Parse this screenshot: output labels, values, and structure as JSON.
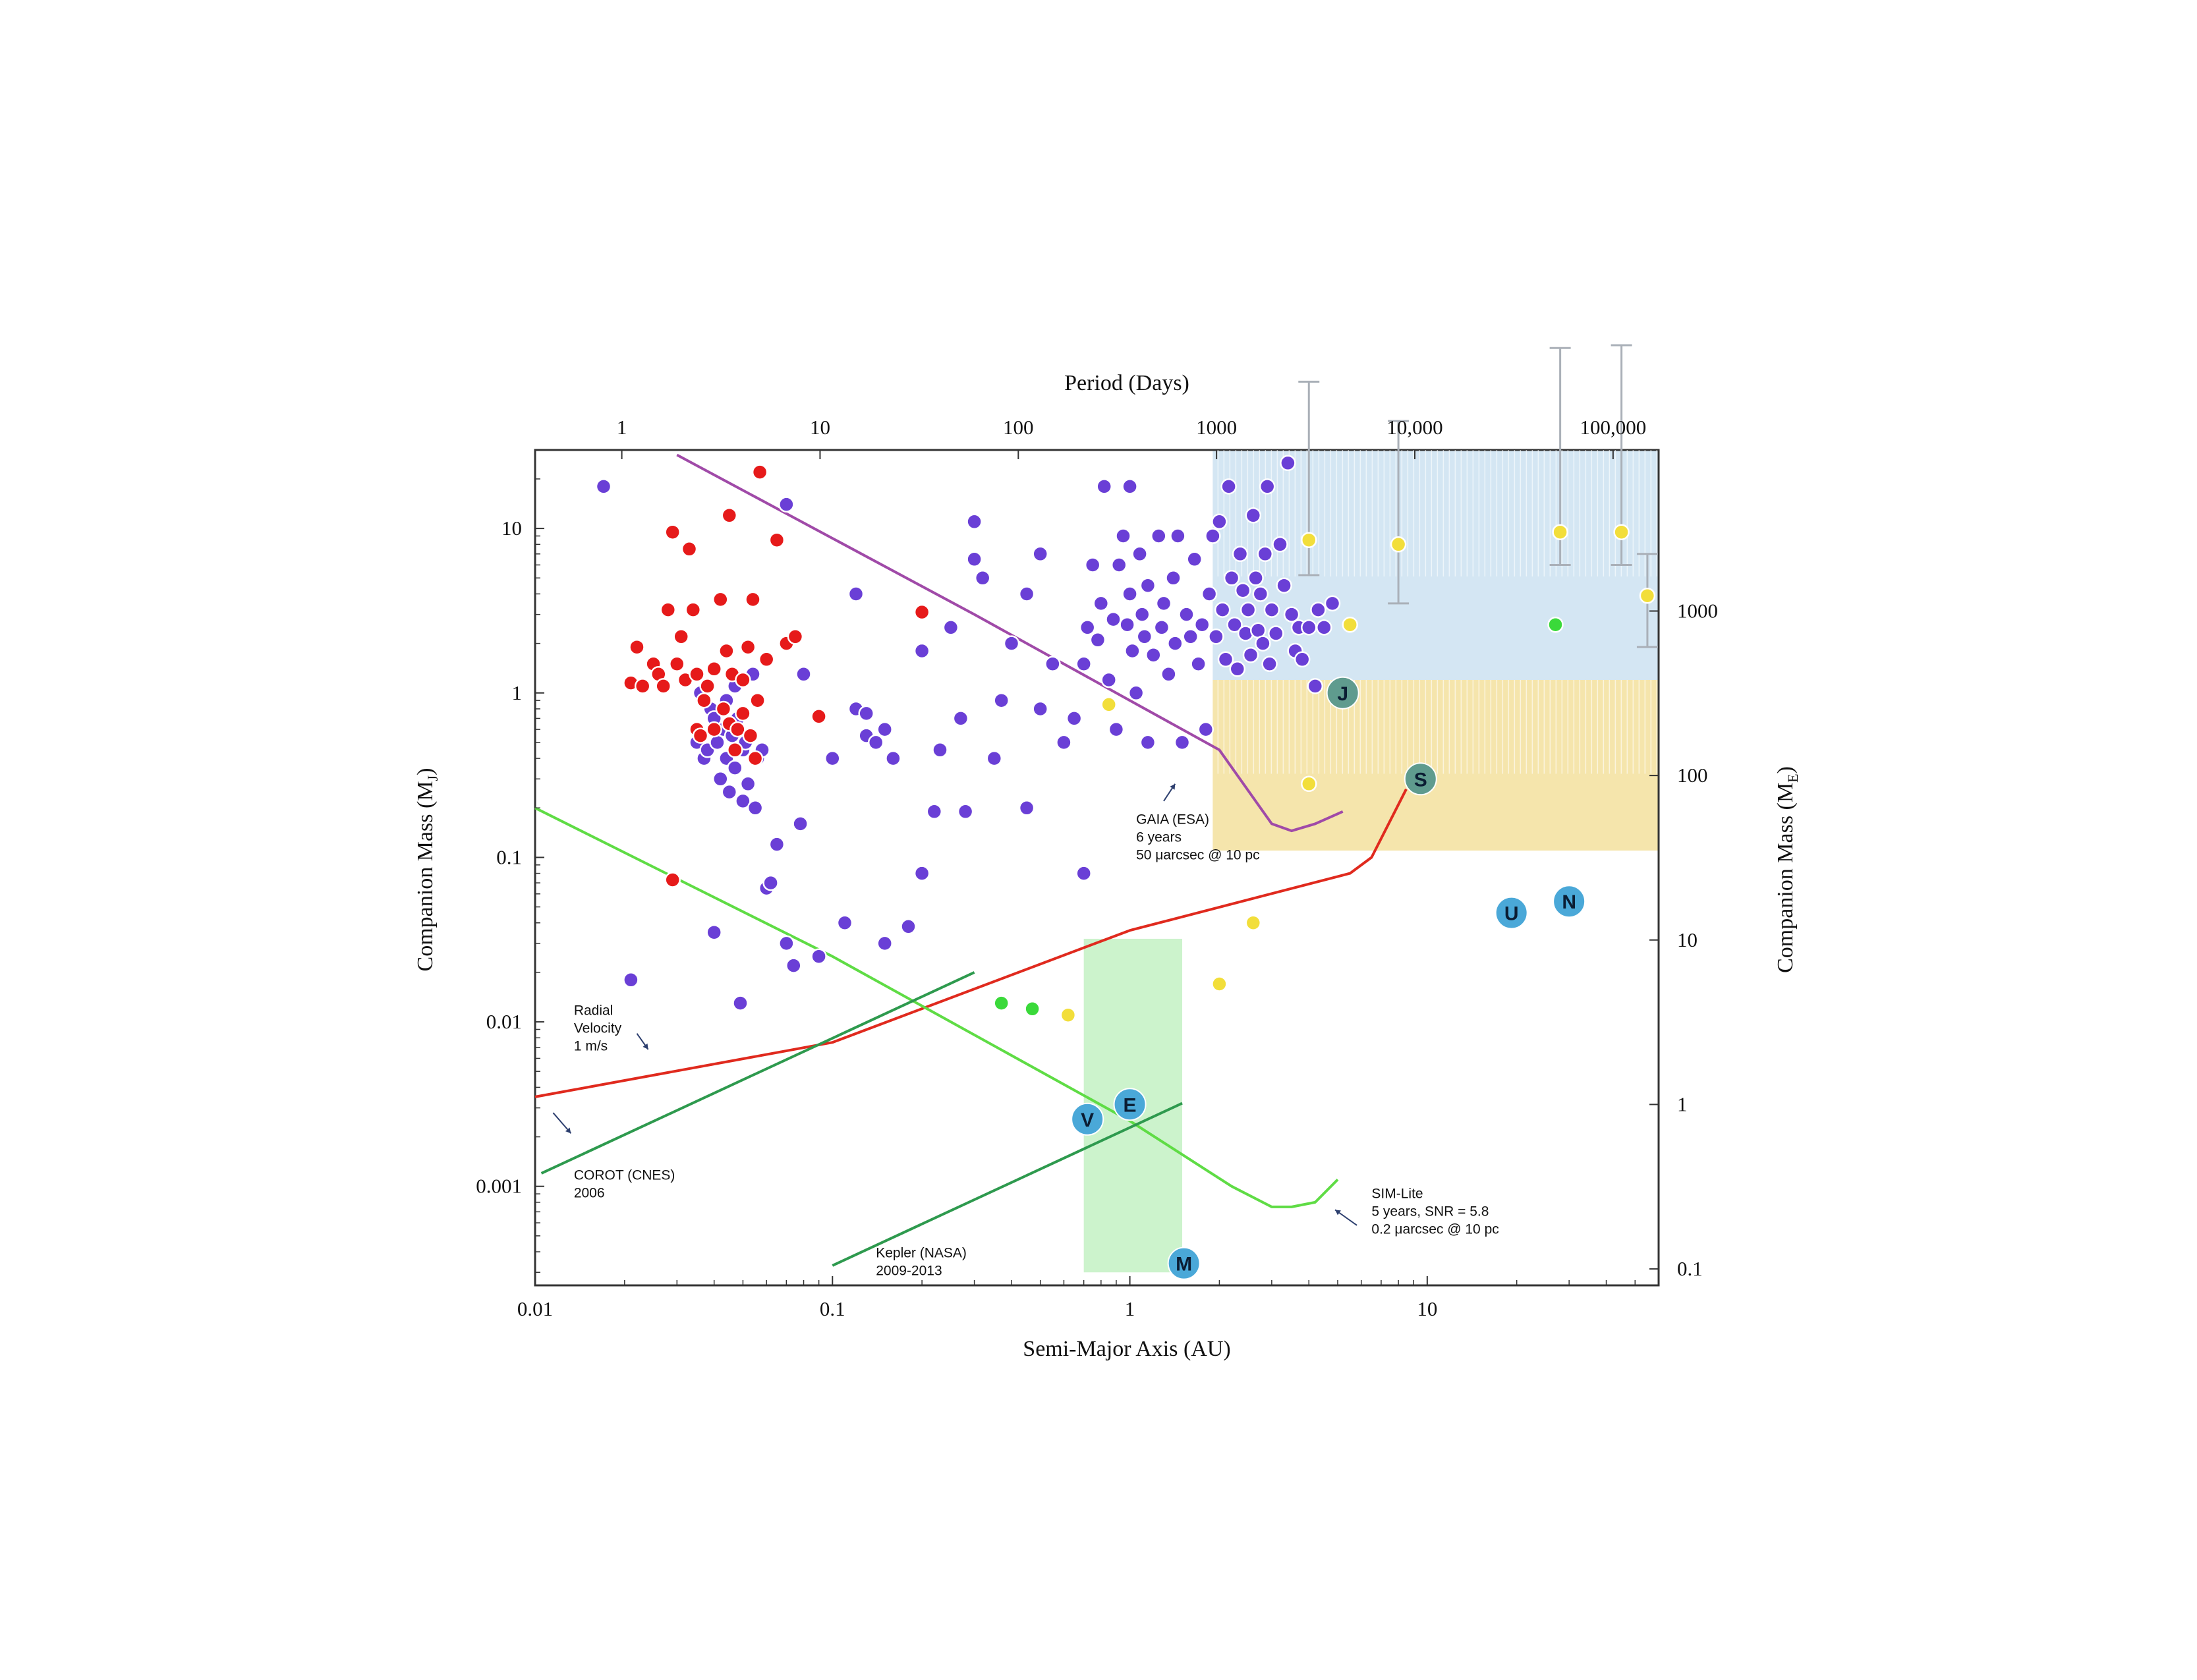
{
  "chart_data": {
    "type": "scatter",
    "x_scale": "log",
    "y_scale": "log",
    "xlim": [
      0.01,
      60
    ],
    "ylim": [
      0.00025,
      30
    ],
    "xlabel": "Semi-Major Axis (AU)",
    "ylabel": "Companion Mass (MJ)",
    "ylabel_main": "Companion Mass (M",
    "ylabel_sub": "J",
    "ylabel_close": ")",
    "top_axis_label": "Period (Days)",
    "right_axis_label_main": "Companion Mass (M",
    "right_axis_label_sub": "E",
    "right_axis_label_close": ")",
    "x_ticks": [
      {
        "v": 0.01,
        "label": "0.01"
      },
      {
        "v": 0.1,
        "label": "0.1"
      },
      {
        "v": 1,
        "label": "1"
      },
      {
        "v": 10,
        "label": "10"
      }
    ],
    "y_ticks": [
      {
        "v": 10,
        "label": "10"
      },
      {
        "v": 1,
        "label": "1"
      },
      {
        "v": 0.1,
        "label": "0.1"
      },
      {
        "v": 0.01,
        "label": "0.01"
      },
      {
        "v": 0.001,
        "label": "0.001"
      }
    ],
    "top_ticks": [
      {
        "v": 1,
        "label": "1"
      },
      {
        "v": 10,
        "label": "10"
      },
      {
        "v": 100,
        "label": "100"
      },
      {
        "v": 1000,
        "label": "1000"
      },
      {
        "v": 10000,
        "label": "10,000"
      },
      {
        "v": 100000,
        "label": "100,000"
      }
    ],
    "right_ticks": [
      {
        "v": 1000,
        "label": "1000"
      },
      {
        "v": 100,
        "label": "100"
      },
      {
        "v": 10,
        "label": "10"
      },
      {
        "v": 1,
        "label": "1"
      },
      {
        "v": 0.1,
        "label": "0.1"
      }
    ],
    "regions": [
      {
        "name": "gaia-region",
        "x": [
          1.9,
          60
        ],
        "y": [
          1.2,
          30
        ],
        "color": "#cfe3f2"
      },
      {
        "name": "sim-region",
        "x": [
          1.9,
          60
        ],
        "y": [
          0.11,
          1.2
        ],
        "color": "#f4e2a3"
      },
      {
        "name": "habitable-zone",
        "x": [
          0.7,
          1.5
        ],
        "y": [
          0.0003,
          0.032
        ],
        "color": "#c6f2c6"
      }
    ],
    "curves": [
      {
        "name": "gaia-curve",
        "color": "#a04aa8",
        "points": [
          [
            0.03,
            28
          ],
          [
            0.3,
            3.0
          ],
          [
            1.0,
            0.9
          ],
          [
            2.0,
            0.45
          ],
          [
            3.0,
            0.16
          ],
          [
            3.5,
            0.145
          ],
          [
            4.2,
            0.16
          ],
          [
            5.2,
            0.19
          ]
        ]
      },
      {
        "name": "radial-velocity-curve",
        "color": "#e02a1e",
        "points": [
          [
            0.01,
            0.0035
          ],
          [
            0.1,
            0.0075
          ],
          [
            1.0,
            0.036
          ],
          [
            5.5,
            0.08
          ],
          [
            6.5,
            0.1
          ],
          [
            8.5,
            0.26
          ]
        ]
      },
      {
        "name": "sim-lite-curve",
        "color": "#5fdc45",
        "points": [
          [
            0.01,
            0.2
          ],
          [
            0.1,
            0.025
          ],
          [
            1.0,
            0.0025
          ],
          [
            2.2,
            0.001
          ],
          [
            3.0,
            0.00075
          ],
          [
            3.5,
            0.00075
          ],
          [
            4.2,
            0.0008
          ],
          [
            5.0,
            0.0011
          ]
        ]
      },
      {
        "name": "corot-curve",
        "color": "#2e9a4e",
        "points": [
          [
            0.0105,
            0.0012
          ],
          [
            0.3,
            0.02
          ]
        ]
      },
      {
        "name": "kepler-curve",
        "color": "#2e9a4e",
        "points": [
          [
            0.1,
            0.00033
          ],
          [
            1.5,
            0.0032
          ]
        ]
      }
    ],
    "annotations": [
      {
        "lines": [
          "GAIA (ESA)",
          "6 years",
          "50 μarcsec @ 10 pc"
        ],
        "x": 1.05,
        "y": 0.16
      },
      {
        "lines": [
          "Radial",
          "Velocity",
          "1 m/s"
        ],
        "x": 0.0135,
        "y": 0.011
      },
      {
        "lines": [
          "COROT (CNES)",
          "2006"
        ],
        "x": 0.0135,
        "y": 0.0011
      },
      {
        "lines": [
          "Kepler (NASA)",
          "2009-2013"
        ],
        "x": 0.14,
        "y": 0.00037
      },
      {
        "lines": [
          "SIM-Lite",
          "5 years, SNR = 5.8",
          "0.2 μarcsec @ 10 pc"
        ],
        "x": 6.5,
        "y": 0.00085
      }
    ],
    "arrows": [
      {
        "from": [
          1.3,
          0.22
        ],
        "to": [
          1.42,
          0.28
        ]
      },
      {
        "from": [
          0.022,
          0.0085
        ],
        "to": [
          0.024,
          0.0068
        ]
      },
      {
        "from": [
          0.0115,
          0.0028
        ],
        "to": [
          0.0132,
          0.0021
        ]
      },
      {
        "from": [
          5.8,
          0.00058
        ],
        "to": [
          4.9,
          0.00072
        ]
      }
    ],
    "series": [
      {
        "name": "",
        "color": "#6a3fd6",
        "points": [
          [
            0.017,
            18
          ],
          [
            0.021,
            0.018
          ],
          [
            0.035,
            0.5
          ],
          [
            0.036,
            1.0
          ],
          [
            0.037,
            0.4
          ],
          [
            0.038,
            0.45
          ],
          [
            0.039,
            0.8
          ],
          [
            0.04,
            0.7
          ],
          [
            0.04,
            0.035
          ],
          [
            0.041,
            0.5
          ],
          [
            0.042,
            0.3
          ],
          [
            0.043,
            0.6
          ],
          [
            0.044,
            0.9
          ],
          [
            0.044,
            0.4
          ],
          [
            0.045,
            0.25
          ],
          [
            0.046,
            0.55
          ],
          [
            0.047,
            1.1
          ],
          [
            0.047,
            0.35
          ],
          [
            0.048,
            0.7
          ],
          [
            0.049,
            0.013
          ],
          [
            0.05,
            0.45
          ],
          [
            0.05,
            0.22
          ],
          [
            0.051,
            0.5
          ],
          [
            0.052,
            0.28
          ],
          [
            0.054,
            1.3
          ],
          [
            0.055,
            0.2
          ],
          [
            0.056,
            0.4
          ],
          [
            0.058,
            0.45
          ],
          [
            0.06,
            0.065
          ],
          [
            0.062,
            0.07
          ],
          [
            0.065,
            0.12
          ],
          [
            0.07,
            14
          ],
          [
            0.07,
            0.03
          ],
          [
            0.074,
            0.022
          ],
          [
            0.078,
            0.16
          ],
          [
            0.08,
            1.3
          ],
          [
            0.09,
            0.025
          ],
          [
            0.1,
            0.4
          ],
          [
            0.11,
            0.04
          ],
          [
            0.12,
            4
          ],
          [
            0.12,
            0.8
          ],
          [
            0.13,
            0.75
          ],
          [
            0.13,
            0.55
          ],
          [
            0.14,
            0.5
          ],
          [
            0.15,
            0.6
          ],
          [
            0.15,
            0.03
          ],
          [
            0.16,
            0.4
          ],
          [
            0.18,
            0.038
          ],
          [
            0.2,
            1.8
          ],
          [
            0.2,
            0.08
          ],
          [
            0.22,
            0.19
          ],
          [
            0.23,
            0.45
          ],
          [
            0.25,
            2.5
          ],
          [
            0.27,
            0.7
          ],
          [
            0.28,
            0.19
          ],
          [
            0.3,
            11
          ],
          [
            0.3,
            6.5
          ],
          [
            0.32,
            5
          ],
          [
            0.35,
            0.4
          ],
          [
            0.37,
            0.9
          ],
          [
            0.4,
            2.0
          ],
          [
            0.45,
            4
          ],
          [
            0.45,
            0.2
          ],
          [
            0.5,
            7
          ],
          [
            0.5,
            0.8
          ],
          [
            0.55,
            1.5
          ],
          [
            0.6,
            0.5
          ],
          [
            0.65,
            0.7
          ],
          [
            0.7,
            1.5
          ],
          [
            0.7,
            0.08
          ],
          [
            0.72,
            2.5
          ],
          [
            0.75,
            6
          ],
          [
            0.78,
            2.1
          ],
          [
            0.8,
            3.5
          ],
          [
            0.82,
            18
          ],
          [
            0.85,
            1.2
          ],
          [
            0.88,
            2.8
          ],
          [
            0.9,
            0.6
          ],
          [
            0.92,
            6
          ],
          [
            0.95,
            9
          ],
          [
            0.98,
            2.6
          ],
          [
            1.0,
            18
          ],
          [
            1.0,
            4.0
          ],
          [
            1.02,
            1.8
          ],
          [
            1.05,
            1.0
          ],
          [
            1.08,
            7
          ],
          [
            1.1,
            3
          ],
          [
            1.12,
            2.2
          ],
          [
            1.15,
            0.5
          ],
          [
            1.15,
            4.5
          ],
          [
            1.2,
            1.7
          ],
          [
            1.25,
            9
          ],
          [
            1.28,
            2.5
          ],
          [
            1.3,
            3.5
          ],
          [
            1.35,
            1.3
          ],
          [
            1.4,
            5
          ],
          [
            1.42,
            2
          ],
          [
            1.45,
            9
          ],
          [
            1.5,
            0.5
          ],
          [
            1.55,
            3
          ],
          [
            1.6,
            2.2
          ],
          [
            1.65,
            6.5
          ],
          [
            1.7,
            1.5
          ],
          [
            1.75,
            2.6
          ],
          [
            1.8,
            0.6
          ],
          [
            1.85,
            4
          ],
          [
            1.9,
            9
          ],
          [
            1.95,
            2.2
          ],
          [
            2.0,
            11
          ],
          [
            2.05,
            3.2
          ],
          [
            2.1,
            1.6
          ],
          [
            2.15,
            18
          ],
          [
            2.2,
            5
          ],
          [
            2.25,
            2.6
          ],
          [
            2.3,
            1.4
          ],
          [
            2.35,
            7
          ],
          [
            2.4,
            4.2
          ],
          [
            2.45,
            2.3
          ],
          [
            2.5,
            3.2
          ],
          [
            2.55,
            1.7
          ],
          [
            2.6,
            12
          ],
          [
            2.65,
            5
          ],
          [
            2.7,
            2.4
          ],
          [
            2.75,
            4
          ],
          [
            2.8,
            2.0
          ],
          [
            2.85,
            7
          ],
          [
            2.9,
            18
          ],
          [
            2.95,
            1.5
          ],
          [
            3.0,
            3.2
          ],
          [
            3.1,
            2.3
          ],
          [
            3.2,
            8
          ],
          [
            3.3,
            4.5
          ],
          [
            3.4,
            25
          ],
          [
            3.5,
            3.0
          ],
          [
            3.6,
            1.8
          ],
          [
            3.7,
            2.5
          ],
          [
            3.8,
            1.6
          ],
          [
            4.0,
            2.5
          ],
          [
            4.2,
            1.1
          ],
          [
            4.3,
            3.2
          ],
          [
            4.5,
            2.5
          ],
          [
            4.8,
            3.5
          ]
        ]
      },
      {
        "name": "",
        "color": "#e61a1a",
        "points": [
          [
            0.021,
            1.15
          ],
          [
            0.022,
            1.9
          ],
          [
            0.023,
            1.1
          ],
          [
            0.025,
            1.5
          ],
          [
            0.026,
            1.3
          ],
          [
            0.027,
            1.1
          ],
          [
            0.028,
            3.2
          ],
          [
            0.029,
            9.5
          ],
          [
            0.03,
            1.5
          ],
          [
            0.031,
            2.2
          ],
          [
            0.032,
            1.2
          ],
          [
            0.033,
            7.5
          ],
          [
            0.034,
            3.2
          ],
          [
            0.035,
            0.6
          ],
          [
            0.035,
            1.3
          ],
          [
            0.036,
            0.55
          ],
          [
            0.037,
            0.9
          ],
          [
            0.038,
            1.1
          ],
          [
            0.04,
            0.6
          ],
          [
            0.04,
            1.4
          ],
          [
            0.042,
            3.7
          ],
          [
            0.043,
            0.8
          ],
          [
            0.044,
            1.8
          ],
          [
            0.045,
            12
          ],
          [
            0.045,
            0.65
          ],
          [
            0.046,
            1.3
          ],
          [
            0.047,
            0.45
          ],
          [
            0.048,
            0.6
          ],
          [
            0.05,
            0.75
          ],
          [
            0.05,
            1.2
          ],
          [
            0.052,
            1.9
          ],
          [
            0.053,
            0.55
          ],
          [
            0.054,
            3.7
          ],
          [
            0.055,
            0.4
          ],
          [
            0.056,
            0.9
          ],
          [
            0.057,
            22
          ],
          [
            0.06,
            1.6
          ],
          [
            0.065,
            8.5
          ],
          [
            0.07,
            2.0
          ],
          [
            0.075,
            2.2
          ],
          [
            0.09,
            0.72
          ],
          [
            0.2,
            3.1
          ],
          [
            0.029,
            0.073
          ]
        ]
      },
      {
        "name": "",
        "color": "#f2de3a",
        "points": [
          [
            0.62,
            0.011
          ],
          [
            0.85,
            0.85
          ],
          [
            2.0,
            0.017
          ],
          [
            2.6,
            0.04
          ],
          [
            4.0,
            0.28
          ],
          [
            4.0,
            8.5
          ],
          [
            5.5,
            2.6
          ],
          [
            8.0,
            8.0
          ],
          [
            28,
            9.5
          ],
          [
            45,
            9.5
          ],
          [
            55,
            3.9
          ]
        ]
      },
      {
        "name": "",
        "color": "#3ad93a",
        "points": [
          [
            0.37,
            0.013
          ],
          [
            0.47,
            0.012
          ],
          [
            27,
            2.6
          ]
        ]
      }
    ],
    "error_bars": [
      {
        "x": 4.0,
        "y": 8.5,
        "lo": 5.2,
        "hi": 78
      },
      {
        "x": 8.0,
        "y": 8.0,
        "lo": 3.5,
        "hi": 45
      },
      {
        "x": 28,
        "y": 9.5,
        "lo": 6.0,
        "hi": 125
      },
      {
        "x": 45,
        "y": 9.5,
        "lo": 6.0,
        "hi": 130
      },
      {
        "x": 55,
        "y": 3.9,
        "lo": 1.9,
        "hi": 7.0
      }
    ],
    "planets": [
      {
        "label": "J",
        "x": 5.2,
        "y": 1.0,
        "color": "#5f9b8e"
      },
      {
        "label": "S",
        "x": 9.5,
        "y": 0.3,
        "color": "#5f9b8e"
      },
      {
        "label": "U",
        "x": 19.2,
        "y": 0.046,
        "color": "#4aa8d8"
      },
      {
        "label": "N",
        "x": 30,
        "y": 0.054,
        "color": "#4aa8d8"
      },
      {
        "label": "V",
        "x": 0.72,
        "y": 0.00256,
        "color": "#4aa8d8"
      },
      {
        "label": "E",
        "x": 1.0,
        "y": 0.00315,
        "color": "#4aa8d8"
      },
      {
        "label": "M",
        "x": 1.52,
        "y": 0.00034,
        "color": "#4aa8d8"
      }
    ]
  }
}
